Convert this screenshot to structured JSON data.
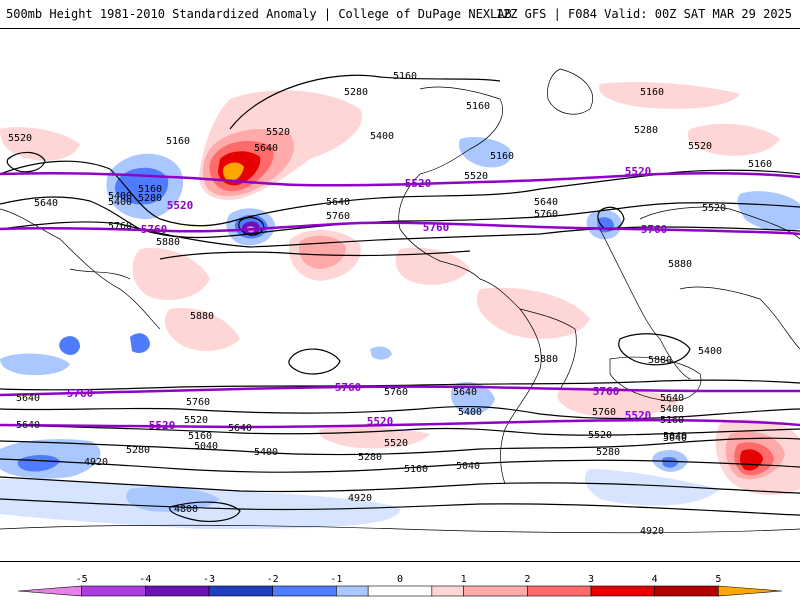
{
  "header": {
    "title": "500mb Height 1981-2010 Standardized Anomaly | College of DuPage NEXLAB",
    "run_info": "12Z GFS | F084 Valid: 00Z SAT MAR 29 2025"
  },
  "map": {
    "contour_labels_black": [
      "5160",
      "5280",
      "5160",
      "5160",
      "5520",
      "5520",
      "5640",
      "5160",
      "5400",
      "5160",
      "5160",
      "5280",
      "5160",
      "5400",
      "5520",
      "5640",
      "5760",
      "5640",
      "5520",
      "5400",
      "5280",
      "5520",
      "5880",
      "5880",
      "5880",
      "5880",
      "5880",
      "5640",
      "5400",
      "5760",
      "5760",
      "5640",
      "5520",
      "5160",
      "5040",
      "5400",
      "5640",
      "5280",
      "5520",
      "5160",
      "5040",
      "5040",
      "4920",
      "4920",
      "4920",
      "4800",
      "5280",
      "5400",
      "5640",
      "5760",
      "5520",
      "5280",
      "5760",
      "5640",
      "5400",
      "5160",
      "5040",
      "5760",
      "5640"
    ],
    "contour_labels_purple": [
      "5520",
      "5520",
      "5520",
      "5760",
      "5760",
      "5760",
      "5760",
      "5760",
      "5760",
      "5520",
      "5520",
      "5520"
    ],
    "colors": {
      "contour": "#000000",
      "highlight_contour": "#8f00c9",
      "coast": "#000000"
    }
  },
  "colorbar": {
    "tick_labels": [
      "-5",
      "-4",
      "-3",
      "-2",
      "-1",
      "0",
      "1",
      "2",
      "3",
      "4",
      "5"
    ],
    "segments": [
      {
        "from": -6,
        "to": -5,
        "color": "#e681e6"
      },
      {
        "from": -5,
        "to": -4,
        "color": "#ad3ce0"
      },
      {
        "from": -4,
        "to": -3,
        "color": "#6b12b3"
      },
      {
        "from": -3,
        "to": -2,
        "color": "#1f3fbf"
      },
      {
        "from": -2,
        "to": -1,
        "color": "#4f7cff"
      },
      {
        "from": -1,
        "to": -0.5,
        "color": "#aac8ff"
      },
      {
        "from": -0.5,
        "to": 0.5,
        "color": "#ffffff"
      },
      {
        "from": 0.5,
        "to": 1,
        "color": "#ffd6d6"
      },
      {
        "from": 1,
        "to": 2,
        "color": "#ffaaaa"
      },
      {
        "from": 2,
        "to": 3,
        "color": "#ff6b6b"
      },
      {
        "from": 3,
        "to": 4,
        "color": "#e60000"
      },
      {
        "from": 4,
        "to": 5,
        "color": "#b30000"
      },
      {
        "from": 5,
        "to": 6,
        "color": "#ffa500"
      }
    ]
  }
}
